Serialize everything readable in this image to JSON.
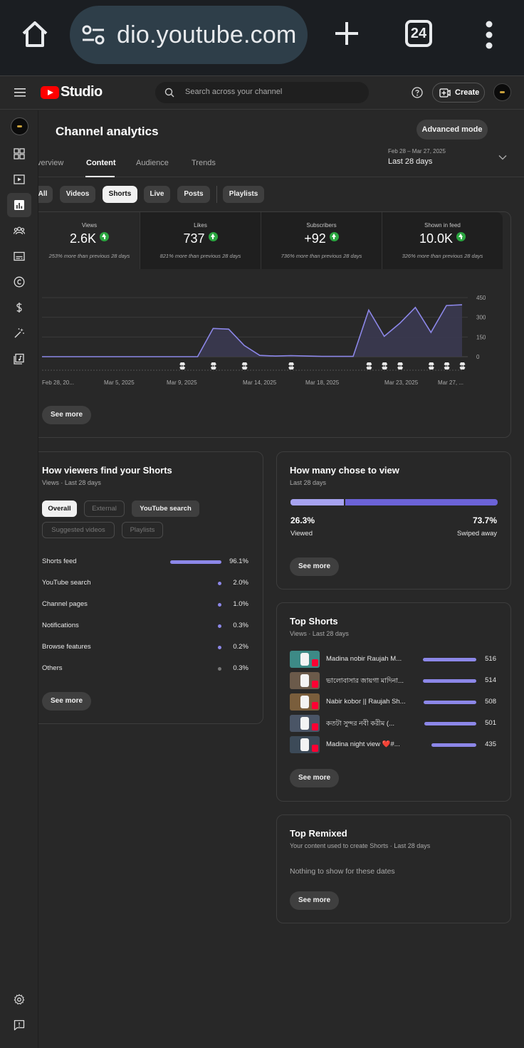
{
  "browser": {
    "url_text": "dio.youtube.com",
    "tab_count": "24"
  },
  "header": {
    "logo_text": "Studio",
    "search_placeholder": "Search across your channel",
    "create_label": "Create"
  },
  "page": {
    "title": "Channel analytics",
    "advanced_mode_label": "Advanced mode",
    "tabs": [
      "verview",
      "Content",
      "Audience",
      "Trends"
    ],
    "active_tab": "Content",
    "date_range_dates": "Feb 28 – Mar 27, 2025",
    "date_range_label": "Last 28 days"
  },
  "content_chips": [
    "All",
    "Videos",
    "Shorts",
    "Live",
    "Posts",
    "Playlists"
  ],
  "selected_chip": "Shorts",
  "metrics": [
    {
      "label": "Views",
      "value": "2.6K",
      "comparison": "253% more than previous 28 days"
    },
    {
      "label": "Likes",
      "value": "737",
      "comparison": "821% more than previous 28 days"
    },
    {
      "label": "Subscribers",
      "value": "+92",
      "comparison": "736% more than previous 28 days"
    },
    {
      "label": "Shown in feed",
      "value": "10.0K",
      "comparison": "326% more than previous 28 days"
    }
  ],
  "metrics_see_more": "See more",
  "chart_data": {
    "type": "area",
    "x_tick_labels": [
      "Feb 28, 20...",
      "Mar 5, 2025",
      "Mar 9, 2025",
      "Mar 14, 2025",
      "Mar 18, 2025",
      "Mar 23, 2025",
      "Mar 27, ..."
    ],
    "y_tick_labels": [
      "450",
      "300",
      "150",
      "0"
    ],
    "ylim": [
      0,
      450
    ],
    "grid": true,
    "series": [
      {
        "x": [
          "Feb 28",
          "Mar 1",
          "Mar 2",
          "Mar 3",
          "Mar 4",
          "Mar 5",
          "Mar 6",
          "Mar 7",
          "Mar 8",
          "Mar 9",
          "Mar 10",
          "Mar 11",
          "Mar 12",
          "Mar 13",
          "Mar 14",
          "Mar 15",
          "Mar 16",
          "Mar 17",
          "Mar 18",
          "Mar 19",
          "Mar 20",
          "Mar 21",
          "Mar 22",
          "Mar 23",
          "Mar 24",
          "Mar 25",
          "Mar 26",
          "Mar 27"
        ],
        "values": [
          0,
          0,
          0,
          0,
          0,
          0,
          0,
          0,
          0,
          0,
          0,
          215,
          210,
          85,
          10,
          5,
          8,
          5,
          2,
          2,
          2,
          355,
          155,
          255,
          375,
          185,
          390,
          395
        ]
      }
    ],
    "upload_markers": [
      "Mar 9",
      "Mar 11",
      "Mar 13",
      "Mar 16",
      "Mar 21",
      "Mar 22",
      "Mar 23",
      "Mar 25",
      "Mar 26",
      "Mar 27"
    ]
  },
  "traffic": {
    "title": "How viewers find your Shorts",
    "subtitle": "Views · Last 28 days",
    "filters": [
      "Overall",
      "External",
      "YouTube search",
      "Suggested videos",
      "Playlists"
    ],
    "rows": [
      {
        "name": "Shorts feed",
        "pct": "96.1%",
        "share": 0.961
      },
      {
        "name": "YouTube search",
        "pct": "2.0%",
        "share": 0.02
      },
      {
        "name": "Channel pages",
        "pct": "1.0%",
        "share": 0.01
      },
      {
        "name": "Notifications",
        "pct": "0.3%",
        "share": 0.003
      },
      {
        "name": "Browse features",
        "pct": "0.2%",
        "share": 0.002
      },
      {
        "name": "Others",
        "pct": "0.3%",
        "share": 0.003
      }
    ],
    "see_more": "See more"
  },
  "chose": {
    "title": "How many chose to view",
    "subtitle": "Last 28 days",
    "viewed_pct": "26.3%",
    "viewed_label": "Viewed",
    "swiped_pct": "73.7%",
    "swiped_label": "Swiped away",
    "viewed_fraction": 0.263,
    "see_more": "See more"
  },
  "top_shorts": {
    "title": "Top Shorts",
    "subtitle": "Views · Last 28 days",
    "rows": [
      {
        "title": "Madina nobir Raujah M...",
        "views": "516",
        "value": 516,
        "thumb_color": "#3d8a86"
      },
      {
        "title": "ভালোবাসার জায়গা মাদিনা...",
        "views": "514",
        "value": 514,
        "thumb_color": "#6b5a4a"
      },
      {
        "title": "Nabir kobor || Raujah Sh...",
        "views": "508",
        "value": 508,
        "thumb_color": "#7a5e3c"
      },
      {
        "title": "কতটা সুন্দর নবী করীম (...",
        "views": "501",
        "value": 501,
        "thumb_color": "#4a5566"
      },
      {
        "title": "Madina night view ❤️#...",
        "views": "435",
        "value": 435,
        "thumb_color": "#3c4a58"
      }
    ],
    "see_more": "See more"
  },
  "top_remixed": {
    "title": "Top Remixed",
    "subtitle": "Your content used to create Shorts · Last 28 days",
    "empty": "Nothing to show for these dates",
    "see_more": "See more"
  },
  "colors": {
    "accent": "#8c87e8",
    "fill": "#3a3950",
    "up_badge": "#2ba640"
  }
}
